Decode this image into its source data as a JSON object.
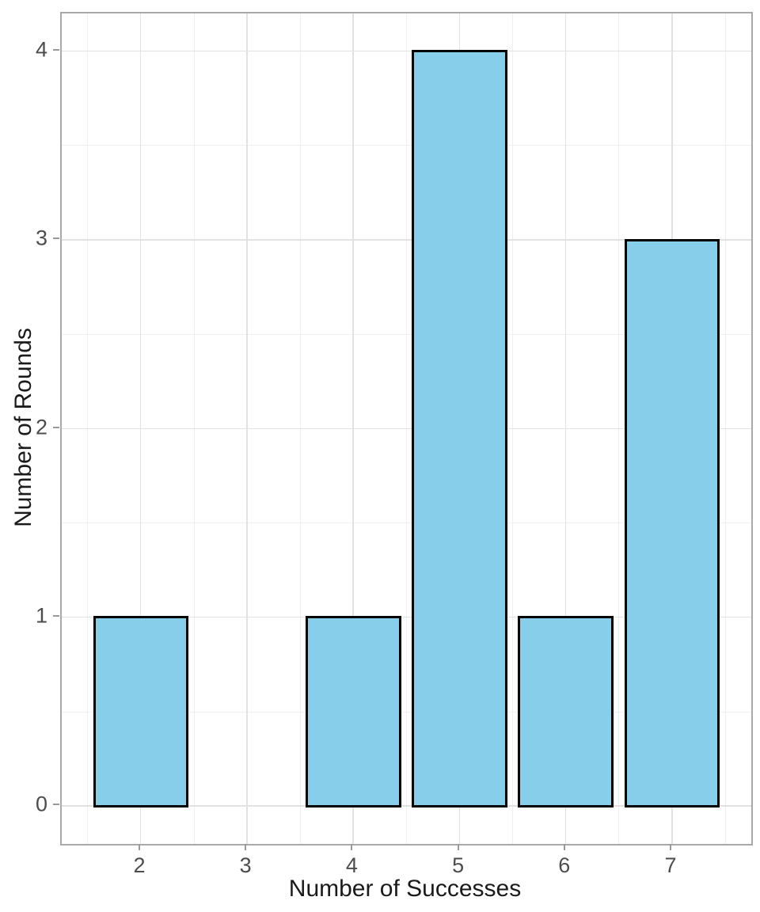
{
  "chart_data": {
    "type": "bar",
    "title": "",
    "xlabel": "Number of Successes",
    "ylabel": "Number of Rounds",
    "x": [
      2,
      4,
      5,
      6,
      7
    ],
    "values": [
      1,
      1,
      4,
      1,
      3
    ],
    "bar_width": 0.9,
    "xlim": [
      1.255,
      7.745
    ],
    "ylim": [
      -0.2,
      4.2
    ],
    "x_ticks": [
      2,
      3,
      4,
      5,
      6,
      7
    ],
    "y_ticks": [
      0,
      1,
      2,
      3,
      4
    ],
    "x_minor": [
      1.5,
      2.5,
      3.5,
      4.5,
      5.5,
      6.5,
      7.5
    ],
    "y_minor": [
      0.5,
      1.5,
      2.5,
      3.5
    ],
    "grid": "major and minor, on white panel",
    "legend": "none",
    "colors": {
      "bar_fill": "#87CEEB",
      "bar_stroke": "#000000",
      "grid_major": "#E2E2E2",
      "grid_minor": "#F0F0F0",
      "panel_border": "#A9A9A9",
      "tick_mark": "#999999",
      "tick_label": "#4D4D4D",
      "axis_title": "#1A1A1A",
      "background": "#FFFFFF"
    }
  }
}
